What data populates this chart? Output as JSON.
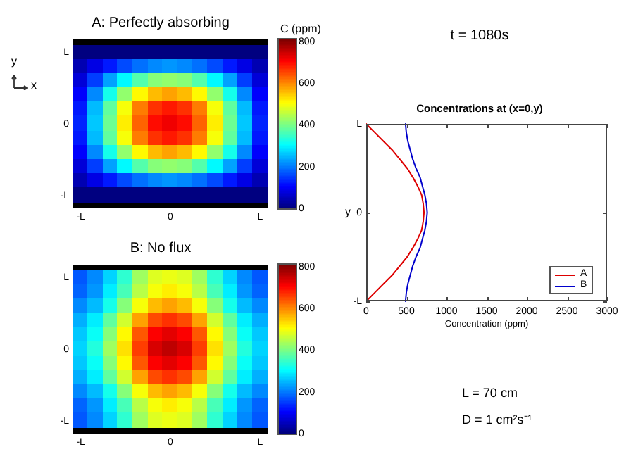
{
  "chart_data": [
    {
      "type": "heatmap",
      "title": "A: Perfectly absorbing",
      "clabel": "C (ppm)",
      "categories": [
        "-L",
        null,
        null,
        null,
        null,
        null,
        "0",
        null,
        null,
        null,
        null,
        null,
        "L"
      ],
      "y_categories": [
        "L",
        null,
        null,
        null,
        null,
        "0",
        null,
        null,
        null,
        null,
        "-L"
      ],
      "cells": [
        [
          0,
          0,
          0,
          0,
          0,
          0,
          0,
          0,
          0,
          0,
          0,
          0,
          0
        ],
        [
          40,
          80,
          120,
          160,
          190,
          210,
          220,
          210,
          190,
          160,
          120,
          80,
          40
        ],
        [
          70,
          150,
          230,
          300,
          370,
          410,
          420,
          410,
          370,
          300,
          230,
          150,
          70
        ],
        [
          100,
          210,
          320,
          420,
          510,
          560,
          580,
          560,
          510,
          420,
          320,
          210,
          100
        ],
        [
          120,
          250,
          380,
          500,
          610,
          670,
          690,
          670,
          610,
          500,
          380,
          250,
          120
        ],
        [
          130,
          260,
          390,
          520,
          630,
          700,
          720,
          700,
          630,
          520,
          390,
          260,
          130
        ],
        [
          120,
          250,
          380,
          500,
          610,
          670,
          690,
          670,
          610,
          500,
          380,
          250,
          120
        ],
        [
          100,
          210,
          320,
          420,
          510,
          560,
          580,
          560,
          510,
          420,
          320,
          210,
          100
        ],
        [
          70,
          150,
          230,
          300,
          370,
          410,
          420,
          410,
          370,
          300,
          230,
          150,
          70
        ],
        [
          40,
          80,
          120,
          160,
          190,
          210,
          220,
          210,
          190,
          160,
          120,
          80,
          40
        ],
        [
          0,
          0,
          0,
          0,
          0,
          0,
          0,
          0,
          0,
          0,
          0,
          0,
          0
        ]
      ],
      "clim": [
        0,
        810
      ],
      "cticks": [
        0,
        200,
        400,
        600,
        800
      ],
      "annotations": [
        "y",
        "x"
      ]
    },
    {
      "type": "heatmap",
      "title": "B: No flux",
      "categories": [
        "-L",
        null,
        null,
        null,
        null,
        null,
        "0",
        null,
        null,
        null,
        null,
        null,
        "L"
      ],
      "y_categories": [
        "L",
        null,
        null,
        null,
        null,
        "0",
        null,
        null,
        null,
        null,
        "-L"
      ],
      "cells": [
        [
          170,
          210,
          270,
          340,
          430,
          480,
          490,
          480,
          430,
          340,
          270,
          210,
          170
        ],
        [
          180,
          220,
          290,
          360,
          450,
          500,
          520,
          500,
          450,
          360,
          290,
          220,
          180
        ],
        [
          210,
          250,
          320,
          410,
          500,
          560,
          580,
          560,
          500,
          410,
          320,
          250,
          210
        ],
        [
          240,
          290,
          380,
          470,
          580,
          650,
          670,
          650,
          580,
          470,
          380,
          290,
          240
        ],
        [
          260,
          310,
          410,
          510,
          640,
          710,
          730,
          710,
          640,
          510,
          410,
          310,
          260
        ],
        [
          270,
          330,
          430,
          530,
          660,
          740,
          760,
          740,
          660,
          530,
          430,
          330,
          270
        ],
        [
          260,
          310,
          410,
          510,
          640,
          710,
          730,
          710,
          640,
          510,
          410,
          310,
          260
        ],
        [
          240,
          290,
          380,
          470,
          580,
          650,
          670,
          650,
          580,
          470,
          380,
          290,
          240
        ],
        [
          210,
          250,
          320,
          410,
          500,
          560,
          580,
          560,
          500,
          410,
          320,
          250,
          210
        ],
        [
          180,
          220,
          290,
          360,
          450,
          500,
          520,
          500,
          450,
          360,
          290,
          220,
          180
        ],
        [
          170,
          210,
          270,
          340,
          430,
          480,
          490,
          480,
          430,
          340,
          270,
          210,
          170
        ]
      ],
      "clim": [
        0,
        810
      ],
      "cticks": [
        0,
        200,
        400,
        600,
        800
      ]
    },
    {
      "type": "line",
      "orientation": "horizontal",
      "title": "Concentrations at (x=0,y)",
      "xlabel": "Concentration (ppm)",
      "ylabel": "y",
      "categories": [
        "L",
        null,
        null,
        null,
        null,
        null,
        null,
        null,
        null,
        null,
        "0",
        null,
        null,
        null,
        null,
        null,
        null,
        null,
        null,
        null,
        "-L"
      ],
      "xlim": [
        0,
        3000
      ],
      "xticks": [
        0,
        500,
        1000,
        1500,
        2000,
        2500,
        3000
      ],
      "legend": "bottom right",
      "series": [
        {
          "name": "A",
          "color": "#dd0000",
          "values": [
            0,
            110,
            220,
            330,
            420,
            510,
            580,
            640,
            690,
            710,
            720,
            710,
            690,
            640,
            580,
            510,
            420,
            330,
            220,
            110,
            0
          ]
        },
        {
          "name": "B",
          "color": "#0000cc",
          "values": [
            490,
            500,
            520,
            550,
            580,
            620,
            670,
            700,
            730,
            750,
            760,
            750,
            730,
            700,
            670,
            620,
            580,
            550,
            520,
            500,
            490
          ]
        }
      ],
      "annotations": [
        "t = 1080s",
        "L = 70 cm",
        "D = 1 cm²s⁻¹"
      ]
    }
  ]
}
